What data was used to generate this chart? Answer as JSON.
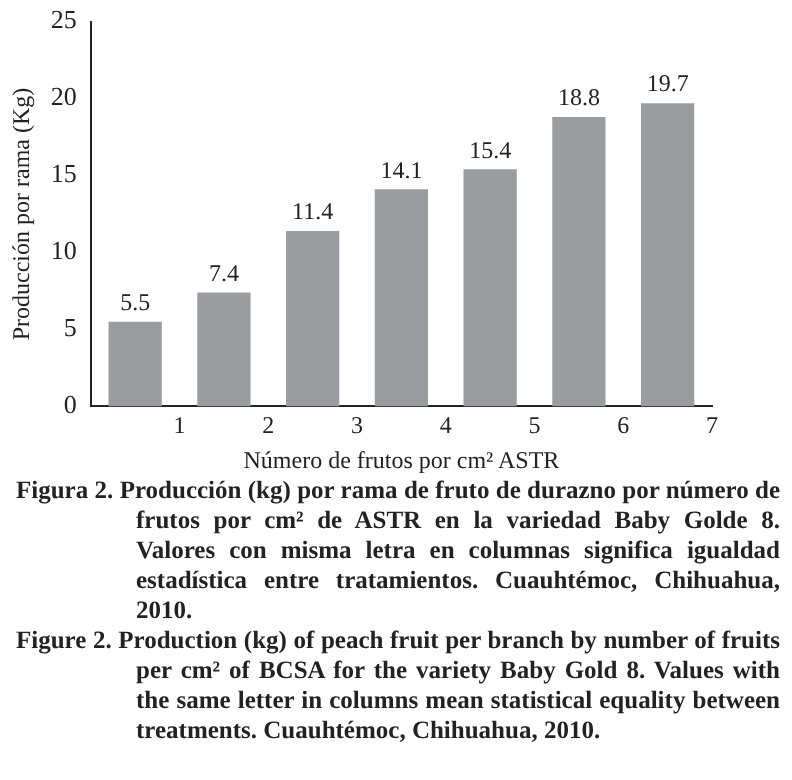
{
  "chart_data": {
    "type": "bar",
    "ylabel": "Producción por rama (Kg)",
    "xlabel": "Número de frutos por cm² ASTR",
    "x": [
      0.5,
      1.5,
      2.5,
      3.5,
      4.5,
      5.5,
      6.5
    ],
    "values": [
      5.5,
      7.4,
      11.4,
      14.1,
      15.4,
      18.8,
      19.7
    ],
    "color": "#9b9ca0",
    "xlim": [
      0,
      7
    ],
    "xticks": [
      1,
      2,
      3,
      4,
      5,
      6,
      7
    ],
    "ylim": [
      0,
      25
    ],
    "yticks": [
      0,
      5,
      10,
      15,
      20,
      25
    ],
    "data_labels": true,
    "grid": false,
    "legend": false,
    "annotations": [
      "Figura 2. Producción (kg) por rama de fruto de durazno por número de frutos por cm² de ASTR en la variedad Baby Golde 8. Valores con misma letra en columnas significa igualdad estadística entre tratamientos. Cuauhtémoc, Chihuahua, 2010.",
      "Figure 2. Production (kg) of peach fruit per branch by number of fruits per cm² of BCSA for the variety Baby Gold 8. Values with the same letter in columns mean statistical equality between treatments. Cuauhtémoc, Chihuahua, 2010."
    ]
  }
}
